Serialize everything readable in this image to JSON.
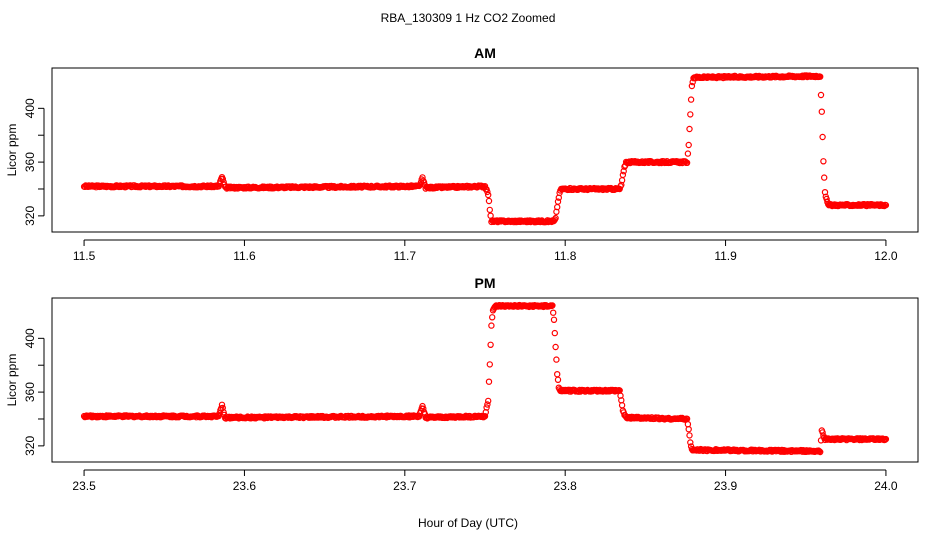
{
  "figure": {
    "title": "RBA_130309  1 Hz CO2 Zoomed",
    "xlabel": "Hour of Day (UTC)"
  },
  "colors": {
    "points": "#ff0000",
    "axes": "#000000",
    "background": "#ffffff"
  },
  "chart_data": [
    {
      "type": "scatter",
      "title": "AM",
      "xlabel": "Hour of Day (UTC)",
      "ylabel": "Licor ppm",
      "xlim": [
        11.48,
        12.02
      ],
      "ylim": [
        308,
        430
      ],
      "xticks": [
        "11.5",
        "11.6",
        "11.7",
        "11.8",
        "11.9",
        "12.0"
      ],
      "yticks": [
        "320",
        "360",
        "400"
      ],
      "marker": "open-circle",
      "series": [
        {
          "values": [
            {
              "x": 11.5,
              "y": 342
            },
            {
              "x": 11.584,
              "y": 342
            },
            {
              "x": 11.586,
              "y": 349
            },
            {
              "x": 11.588,
              "y": 341
            },
            {
              "x": 11.709,
              "y": 342
            },
            {
              "x": 11.711,
              "y": 348
            },
            {
              "x": 11.713,
              "y": 341
            },
            {
              "x": 11.75,
              "y": 342
            },
            {
              "x": 11.752,
              "y": 336
            },
            {
              "x": 11.753,
              "y": 325
            },
            {
              "x": 11.754,
              "y": 316
            },
            {
              "x": 11.793,
              "y": 316
            },
            {
              "x": 11.794,
              "y": 318
            },
            {
              "x": 11.795,
              "y": 327
            },
            {
              "x": 11.796,
              "y": 334
            },
            {
              "x": 11.797,
              "y": 339
            },
            {
              "x": 11.798,
              "y": 340
            },
            {
              "x": 11.834,
              "y": 340
            },
            {
              "x": 11.835,
              "y": 343
            },
            {
              "x": 11.836,
              "y": 350
            },
            {
              "x": 11.837,
              "y": 356
            },
            {
              "x": 11.838,
              "y": 360
            },
            {
              "x": 11.876,
              "y": 360
            },
            {
              "x": 11.877,
              "y": 372
            },
            {
              "x": 11.878,
              "y": 396
            },
            {
              "x": 11.879,
              "y": 416
            },
            {
              "x": 11.88,
              "y": 423
            },
            {
              "x": 11.959,
              "y": 424
            },
            {
              "x": 11.96,
              "y": 397
            },
            {
              "x": 11.961,
              "y": 360
            },
            {
              "x": 11.962,
              "y": 337
            },
            {
              "x": 11.964,
              "y": 328
            },
            {
              "x": 12.0,
              "y": 328
            }
          ]
        }
      ]
    },
    {
      "type": "scatter",
      "title": "PM",
      "xlabel": "Hour of Day (UTC)",
      "ylabel": "Licor ppm",
      "xlim": [
        23.48,
        24.02
      ],
      "ylim": [
        308,
        430
      ],
      "xticks": [
        "23.5",
        "23.6",
        "23.7",
        "23.8",
        "23.9",
        "24.0"
      ],
      "yticks": [
        "320",
        "360",
        "400"
      ],
      "marker": "open-circle",
      "series": [
        {
          "values": [
            {
              "x": 23.5,
              "y": 342
            },
            {
              "x": 23.584,
              "y": 342
            },
            {
              "x": 23.586,
              "y": 350
            },
            {
              "x": 23.588,
              "y": 341
            },
            {
              "x": 23.709,
              "y": 342
            },
            {
              "x": 23.711,
              "y": 349
            },
            {
              "x": 23.713,
              "y": 341
            },
            {
              "x": 23.75,
              "y": 342
            },
            {
              "x": 23.752,
              "y": 354
            },
            {
              "x": 23.753,
              "y": 381
            },
            {
              "x": 23.754,
              "y": 410
            },
            {
              "x": 23.755,
              "y": 421
            },
            {
              "x": 23.757,
              "y": 424
            },
            {
              "x": 23.792,
              "y": 424
            },
            {
              "x": 23.793,
              "y": 414
            },
            {
              "x": 23.794,
              "y": 394
            },
            {
              "x": 23.795,
              "y": 373
            },
            {
              "x": 23.796,
              "y": 364
            },
            {
              "x": 23.797,
              "y": 361
            },
            {
              "x": 23.834,
              "y": 361
            },
            {
              "x": 23.835,
              "y": 354
            },
            {
              "x": 23.836,
              "y": 346
            },
            {
              "x": 23.838,
              "y": 341
            },
            {
              "x": 23.876,
              "y": 340
            },
            {
              "x": 23.877,
              "y": 332
            },
            {
              "x": 23.878,
              "y": 323
            },
            {
              "x": 23.879,
              "y": 317
            },
            {
              "x": 23.959,
              "y": 316
            },
            {
              "x": 23.96,
              "y": 331
            },
            {
              "x": 23.962,
              "y": 325
            },
            {
              "x": 24.0,
              "y": 325
            }
          ]
        }
      ]
    }
  ]
}
